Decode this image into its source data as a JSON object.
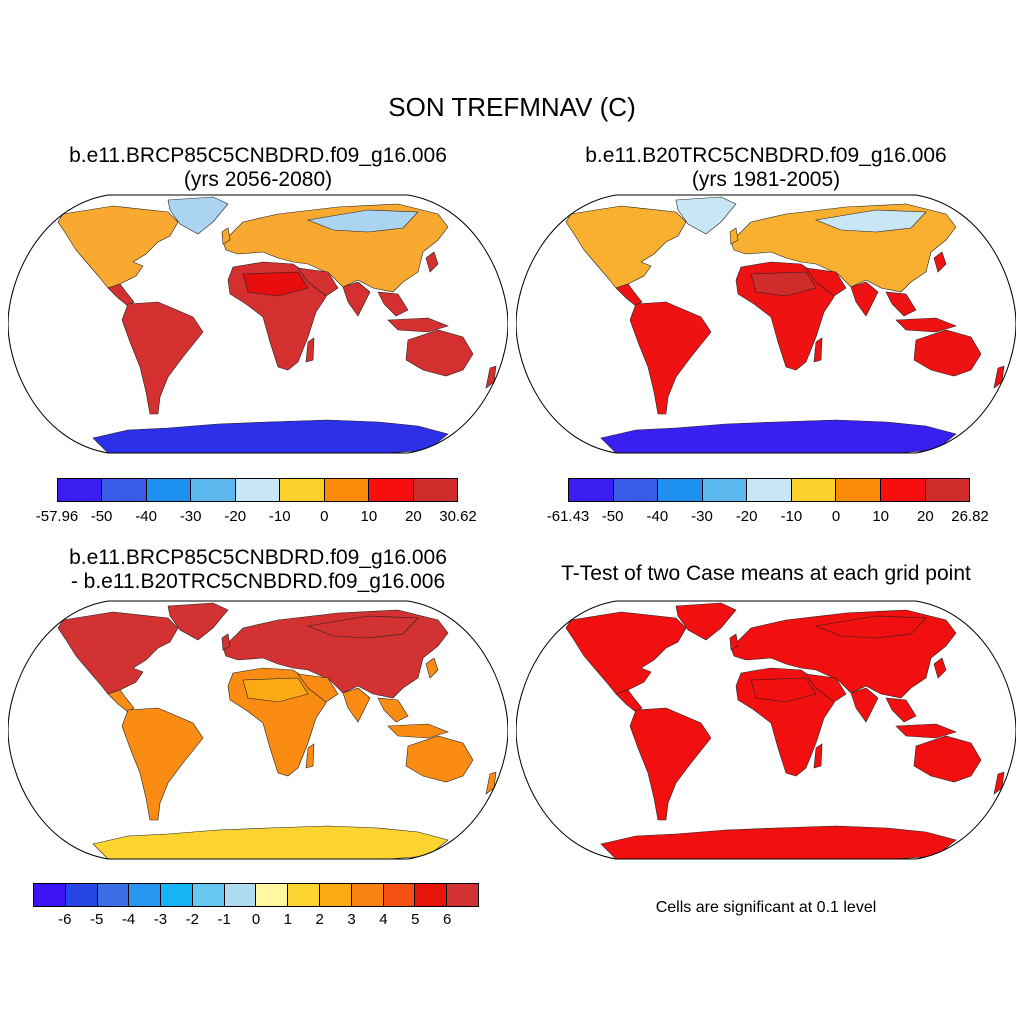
{
  "title": "SON TREFMNAV (C)",
  "panels": [
    {
      "line1": "b.e11.BRCP85C5CNBDRD.f09_g16.006",
      "line2": "(yrs 2056-2080)",
      "colorbar": {
        "colors": [
          "#3a1ef0",
          "#3a5be8",
          "#1e90f0",
          "#5ab8ee",
          "#c8e6f6",
          "#fcd02a",
          "#fa8c0a",
          "#f50f0f",
          "#d02c2c"
        ],
        "labels": [
          "-57.96",
          "-50",
          "-40",
          "-30",
          "-20",
          "-10",
          "0",
          "10",
          "20",
          "30.62"
        ]
      },
      "palette": {
        "land": "#d43030",
        "north": "#f9a830",
        "arctic": "#aad4f0",
        "antarctic": "#2c30e8",
        "hotspot": "#e80e0e"
      }
    },
    {
      "line1": "b.e11.B20TRC5CNBDRD.f09_g16.006",
      "line2": "(yrs 1981-2005)",
      "colorbar": {
        "colors": [
          "#3a1ef0",
          "#3a5be8",
          "#1e90f0",
          "#5ab8ee",
          "#c8e6f6",
          "#fcd02a",
          "#fa8c0a",
          "#f50f0f",
          "#d02c2c"
        ],
        "labels": [
          "-61.43",
          "-50",
          "-40",
          "-30",
          "-20",
          "-10",
          "0",
          "10",
          "20",
          "26.82"
        ]
      },
      "palette": {
        "land": "#ee1212",
        "north": "#f9b030",
        "arctic": "#c8e6f6",
        "antarctic": "#3a20f0",
        "hotspot": "#d02c2c"
      }
    },
    {
      "line1": "b.e11.BRCP85C5CNBDRD.f09_g16.006",
      "line2": "- b.e11.B20TRC5CNBDRD.f09_g16.006",
      "colorbar": {
        "colors": [
          "#3c14f5",
          "#2846e6",
          "#3c6ee6",
          "#2896f0",
          "#14b4f5",
          "#64c8f0",
          "#afdcf0",
          "#fff8a0",
          "#fcd430",
          "#fbaa14",
          "#fa8214",
          "#f55014",
          "#e6140a",
          "#d23232"
        ],
        "labels": [
          "-6",
          "-5",
          "-4",
          "-3",
          "-2",
          "-1",
          "0",
          "1",
          "2",
          "3",
          "4",
          "5",
          "6"
        ]
      },
      "palette": {
        "land": "#fa8c14",
        "north": "#d23232",
        "arctic": "#d23232",
        "antarctic": "#fcd430",
        "hotspot": "#fbaa14"
      }
    },
    {
      "line1": "T-Test of two Case means at each grid point",
      "line2": "",
      "note": "Cells are significant at 0.1 level",
      "palette": {
        "land": "#f20f0f",
        "north": "#f20f0f",
        "arctic": "#f20f0f",
        "antarctic": "#f20f0f",
        "hotspot": "#f20f0f"
      }
    }
  ]
}
